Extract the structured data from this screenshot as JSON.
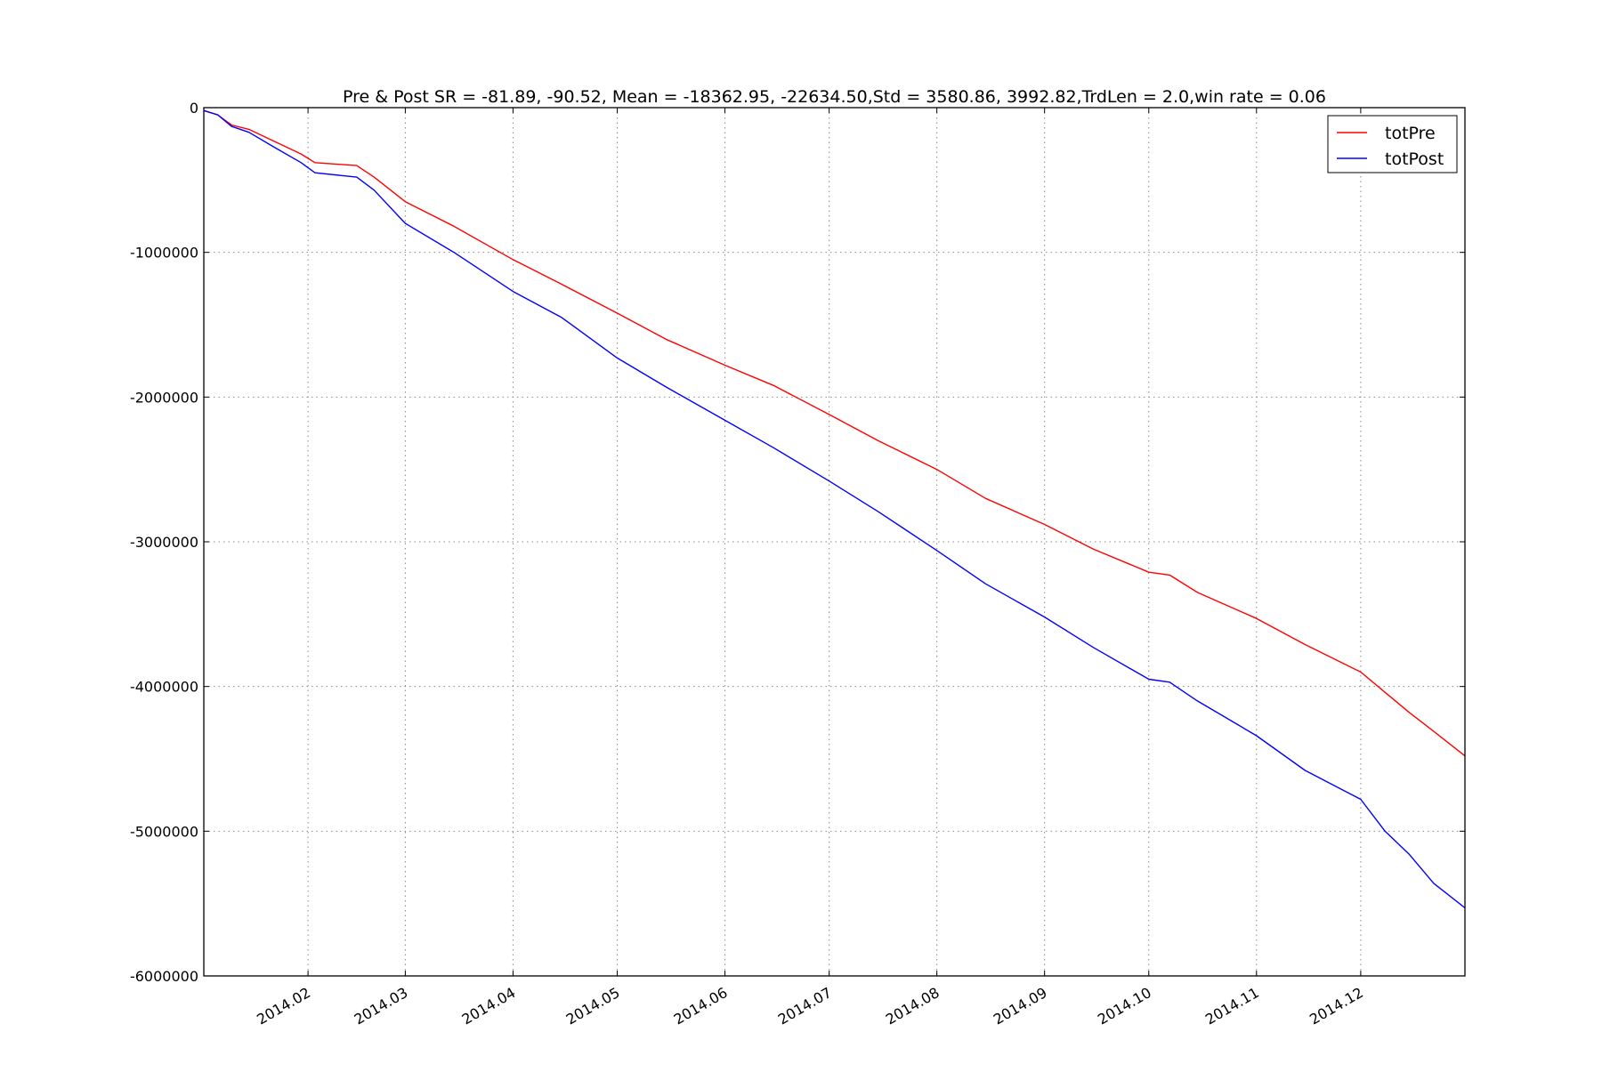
{
  "chart_data": {
    "type": "line",
    "title": "Pre & Post SR = -81.89, -90.52, Mean = -18362.95, -22634.50,Std = 3580.86, 3992.82,TrdLen = 2.0,win rate = 0.06",
    "xlabel": "",
    "ylabel": "",
    "xlim": [
      "2014-01-02",
      "2014-12-31"
    ],
    "ylim": [
      -6000000,
      0
    ],
    "grid": true,
    "legend_position": "top-right",
    "x_ticks": [
      {
        "date": "2014-02-01",
        "label": "2014.02"
      },
      {
        "date": "2014-03-01",
        "label": "2014.03"
      },
      {
        "date": "2014-04-01",
        "label": "2014.04"
      },
      {
        "date": "2014-05-01",
        "label": "2014.05"
      },
      {
        "date": "2014-06-01",
        "label": "2014.06"
      },
      {
        "date": "2014-07-01",
        "label": "2014.07"
      },
      {
        "date": "2014-08-01",
        "label": "2014.08"
      },
      {
        "date": "2014-09-01",
        "label": "2014.09"
      },
      {
        "date": "2014-10-01",
        "label": "2014.10"
      },
      {
        "date": "2014-11-01",
        "label": "2014.11"
      },
      {
        "date": "2014-12-01",
        "label": "2014.12"
      }
    ],
    "y_ticks": [
      {
        "value": 0,
        "label": "0"
      },
      {
        "value": -1000000,
        "label": "-1000000"
      },
      {
        "value": -2000000,
        "label": "-2000000"
      },
      {
        "value": -3000000,
        "label": "-3000000"
      },
      {
        "value": -4000000,
        "label": "-4000000"
      },
      {
        "value": -5000000,
        "label": "-5000000"
      },
      {
        "value": -6000000,
        "label": "-6000000"
      }
    ],
    "series": [
      {
        "name": "totPre",
        "color": "#ff0000",
        "points": [
          [
            "2014-01-02",
            -20000
          ],
          [
            "2014-01-06",
            -50000
          ],
          [
            "2014-01-10",
            -120000
          ],
          [
            "2014-01-15",
            -150000
          ],
          [
            "2014-01-22",
            -230000
          ],
          [
            "2014-01-30",
            -320000
          ],
          [
            "2014-02-03",
            -380000
          ],
          [
            "2014-02-15",
            -400000
          ],
          [
            "2014-02-20",
            -480000
          ],
          [
            "2014-03-01",
            -650000
          ],
          [
            "2014-03-15",
            -820000
          ],
          [
            "2014-04-01",
            -1050000
          ],
          [
            "2014-04-15",
            -1220000
          ],
          [
            "2014-05-01",
            -1420000
          ],
          [
            "2014-05-15",
            -1600000
          ],
          [
            "2014-06-01",
            -1780000
          ],
          [
            "2014-06-15",
            -1920000
          ],
          [
            "2014-07-01",
            -2120000
          ],
          [
            "2014-07-15",
            -2300000
          ],
          [
            "2014-08-01",
            -2500000
          ],
          [
            "2014-08-15",
            -2700000
          ],
          [
            "2014-09-01",
            -2880000
          ],
          [
            "2014-09-15",
            -3050000
          ],
          [
            "2014-10-01",
            -3210000
          ],
          [
            "2014-10-07",
            -3230000
          ],
          [
            "2014-10-15",
            -3350000
          ],
          [
            "2014-11-01",
            -3530000
          ],
          [
            "2014-11-15",
            -3710000
          ],
          [
            "2014-12-01",
            -3900000
          ],
          [
            "2014-12-08",
            -4040000
          ],
          [
            "2014-12-15",
            -4180000
          ],
          [
            "2014-12-22",
            -4310000
          ],
          [
            "2014-12-31",
            -4480000
          ]
        ]
      },
      {
        "name": "totPost",
        "color": "#0000ff",
        "points": [
          [
            "2014-01-02",
            -20000
          ],
          [
            "2014-01-06",
            -50000
          ],
          [
            "2014-01-10",
            -130000
          ],
          [
            "2014-01-15",
            -170000
          ],
          [
            "2014-01-22",
            -270000
          ],
          [
            "2014-01-30",
            -380000
          ],
          [
            "2014-02-03",
            -450000
          ],
          [
            "2014-02-15",
            -480000
          ],
          [
            "2014-02-20",
            -570000
          ],
          [
            "2014-03-01",
            -800000
          ],
          [
            "2014-03-15",
            -1000000
          ],
          [
            "2014-04-01",
            -1270000
          ],
          [
            "2014-04-15",
            -1450000
          ],
          [
            "2014-05-01",
            -1730000
          ],
          [
            "2014-05-15",
            -1930000
          ],
          [
            "2014-06-01",
            -2160000
          ],
          [
            "2014-06-15",
            -2350000
          ],
          [
            "2014-07-01",
            -2580000
          ],
          [
            "2014-07-15",
            -2790000
          ],
          [
            "2014-08-01",
            -3060000
          ],
          [
            "2014-08-15",
            -3290000
          ],
          [
            "2014-09-01",
            -3520000
          ],
          [
            "2014-09-15",
            -3730000
          ],
          [
            "2014-10-01",
            -3950000
          ],
          [
            "2014-10-07",
            -3970000
          ],
          [
            "2014-10-15",
            -4100000
          ],
          [
            "2014-11-01",
            -4340000
          ],
          [
            "2014-11-15",
            -4580000
          ],
          [
            "2014-12-01",
            -4780000
          ],
          [
            "2014-12-08",
            -5000000
          ],
          [
            "2014-12-15",
            -5160000
          ],
          [
            "2014-12-22",
            -5360000
          ],
          [
            "2014-12-31",
            -5530000
          ]
        ]
      }
    ]
  }
}
